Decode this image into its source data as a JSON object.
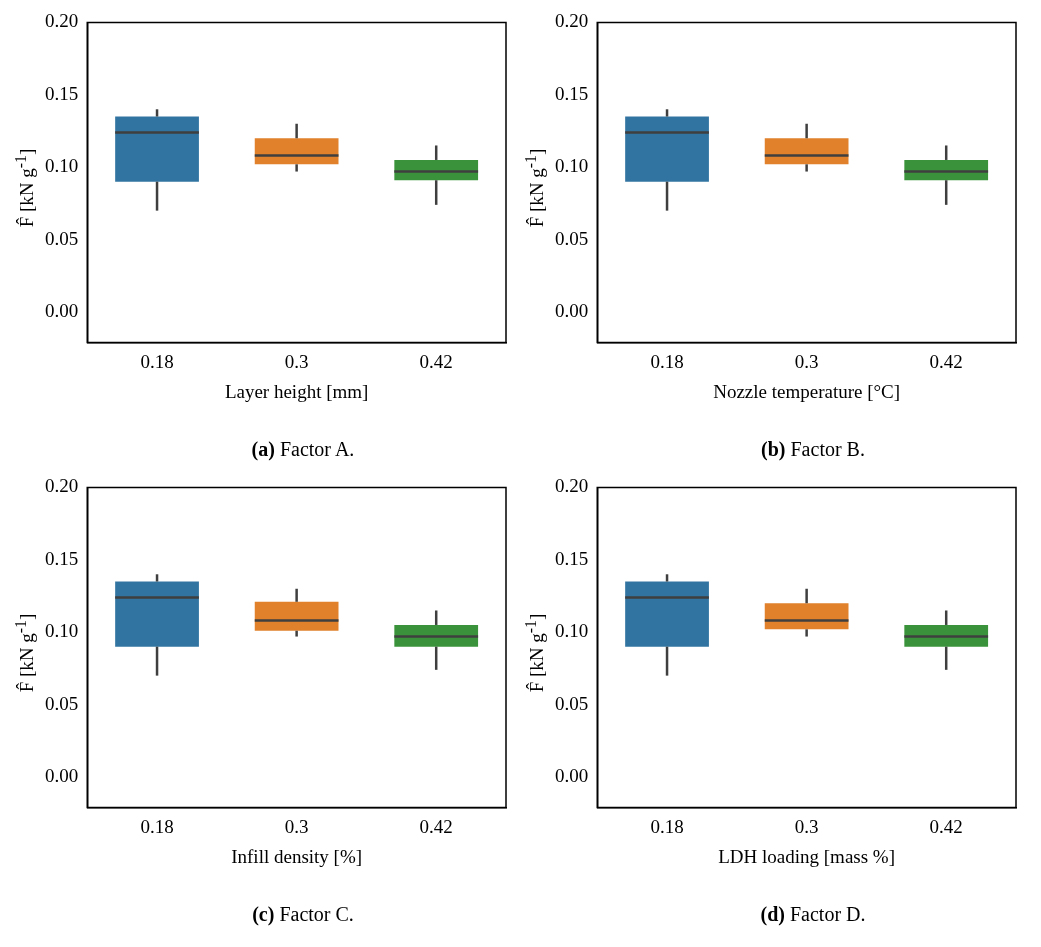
{
  "chart_data": [
    {
      "type": "box",
      "categories": [
        "0.18",
        "0.3",
        "0.42"
      ],
      "colors": [
        "#3274a1",
        "#e1812c",
        "#3a923a"
      ],
      "boxes": [
        {
          "low": 0.07,
          "q1": 0.09,
          "median": 0.124,
          "q3": 0.135,
          "high": 0.14
        },
        {
          "low": 0.097,
          "q1": 0.102,
          "median": 0.108,
          "q3": 0.12,
          "high": 0.13
        },
        {
          "low": 0.074,
          "q1": 0.091,
          "median": 0.097,
          "q3": 0.105,
          "high": 0.115
        }
      ],
      "ylim": [
        -0.021,
        0.2
      ],
      "yticks": [
        {
          "value": 0,
          "label": "0.00"
        },
        {
          "value": 0.05,
          "label": "0.05"
        },
        {
          "value": 0.1,
          "label": "0.10"
        },
        {
          "value": 0.15,
          "label": "0.15"
        },
        {
          "value": 0.2,
          "label": "0.20"
        }
      ],
      "ylabel": "F̂ [kN g$^{-1}$]",
      "xlabel": "Layer height [mm]",
      "annotations": [
        "(a) Factor A."
      ]
    },
    {
      "type": "box",
      "categories": [
        "0.18",
        "0.3",
        "0.42"
      ],
      "colors": [
        "#3274a1",
        "#e1812c",
        "#3a923a"
      ],
      "boxes": [
        {
          "low": 0.07,
          "q1": 0.09,
          "median": 0.124,
          "q3": 0.135,
          "high": 0.14
        },
        {
          "low": 0.097,
          "q1": 0.102,
          "median": 0.108,
          "q3": 0.12,
          "high": 0.13
        },
        {
          "low": 0.074,
          "q1": 0.091,
          "median": 0.097,
          "q3": 0.105,
          "high": 0.115
        }
      ],
      "ylim": [
        -0.021,
        0.2
      ],
      "yticks": [
        {
          "value": 0,
          "label": "0.00"
        },
        {
          "value": 0.05,
          "label": "0.05"
        },
        {
          "value": 0.1,
          "label": "0.10"
        },
        {
          "value": 0.15,
          "label": "0.15"
        },
        {
          "value": 0.2,
          "label": "0.20"
        }
      ],
      "ylabel": "F̂ [kN g$^{-1}$]",
      "xlabel": "Nozzle temperature [°C]",
      "annotations": [
        "(b) Factor B."
      ]
    },
    {
      "type": "box",
      "categories": [
        "0.18",
        "0.3",
        "0.42"
      ],
      "colors": [
        "#3274a1",
        "#e1812c",
        "#3a923a"
      ],
      "boxes": [
        {
          "low": 0.07,
          "q1": 0.09,
          "median": 0.124,
          "q3": 0.135,
          "high": 0.14
        },
        {
          "low": 0.097,
          "q1": 0.101,
          "median": 0.108,
          "q3": 0.121,
          "high": 0.13
        },
        {
          "low": 0.074,
          "q1": 0.09,
          "median": 0.097,
          "q3": 0.105,
          "high": 0.115
        }
      ],
      "ylim": [
        -0.021,
        0.2
      ],
      "yticks": [
        {
          "value": 0,
          "label": "0.00"
        },
        {
          "value": 0.05,
          "label": "0.05"
        },
        {
          "value": 0.1,
          "label": "0.10"
        },
        {
          "value": 0.15,
          "label": "0.15"
        },
        {
          "value": 0.2,
          "label": "0.20"
        }
      ],
      "ylabel": "F̂ [kN g$^{-1}$]",
      "xlabel": "Infill density [%]",
      "annotations": [
        "(c) Factor C."
      ]
    },
    {
      "type": "box",
      "categories": [
        "0.18",
        "0.3",
        "0.42"
      ],
      "colors": [
        "#3274a1",
        "#e1812c",
        "#3a923a"
      ],
      "boxes": [
        {
          "low": 0.07,
          "q1": 0.09,
          "median": 0.124,
          "q3": 0.135,
          "high": 0.14
        },
        {
          "low": 0.097,
          "q1": 0.102,
          "median": 0.108,
          "q3": 0.12,
          "high": 0.13
        },
        {
          "low": 0.074,
          "q1": 0.09,
          "median": 0.097,
          "q3": 0.105,
          "high": 0.115
        }
      ],
      "ylim": [
        -0.021,
        0.2
      ],
      "yticks": [
        {
          "value": 0,
          "label": "0.00"
        },
        {
          "value": 0.05,
          "label": "0.05"
        },
        {
          "value": 0.1,
          "label": "0.10"
        },
        {
          "value": 0.15,
          "label": "0.15"
        },
        {
          "value": 0.2,
          "label": "0.20"
        }
      ],
      "ylabel": "F̂ [kN g$^{-1}$]",
      "xlabel": "LDH loading [mass %]",
      "annotations": [
        "(d) Factor D."
      ]
    }
  ]
}
